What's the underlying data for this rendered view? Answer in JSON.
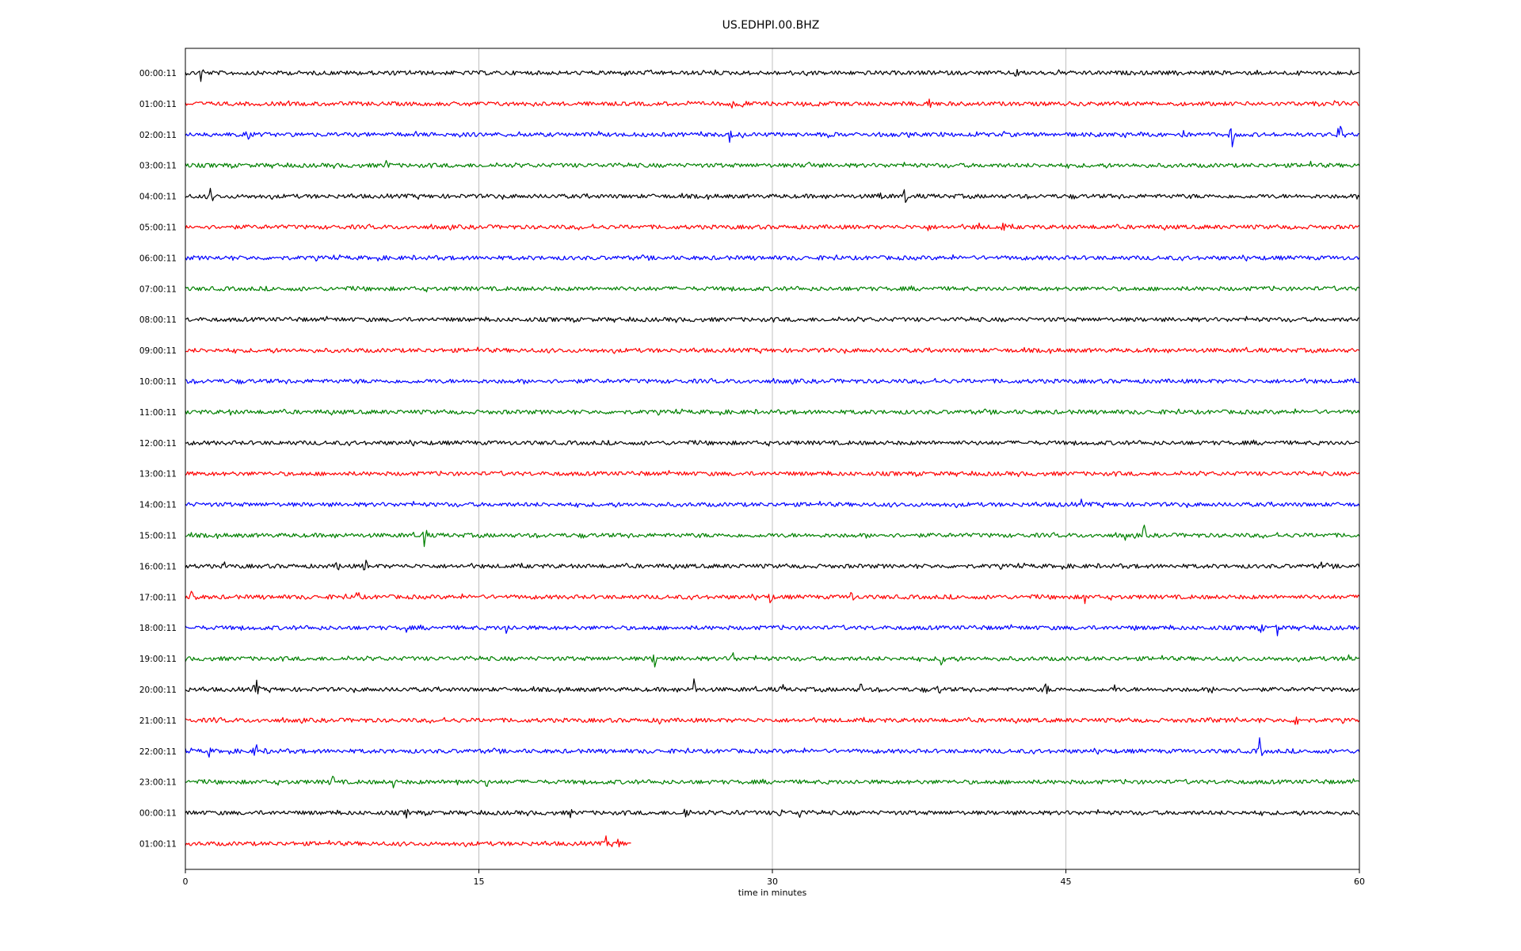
{
  "chart_data": {
    "type": "line",
    "title": "US.EDHPI.00.BHZ",
    "xlabel": "time in minutes",
    "ylabel": "",
    "xlim": [
      0,
      60
    ],
    "xticks": [
      "0",
      "15",
      "30",
      "45",
      "60"
    ],
    "grid": "vertical",
    "trace_colors": [
      "#000000",
      "#ff0000",
      "#0000ff",
      "#008000"
    ],
    "rows": [
      {
        "label": "00:00:11",
        "color": "#000000",
        "end_minute": 60,
        "events": [
          {
            "t": 0.8,
            "a": 16
          },
          {
            "t": 42.5,
            "a": 12
          }
        ]
      },
      {
        "label": "01:00:11",
        "color": "#ff0000",
        "end_minute": 60,
        "events": [
          {
            "t": 28.0,
            "a": 12
          },
          {
            "t": 28.5,
            "a": 16
          },
          {
            "t": 38.0,
            "a": 14
          }
        ]
      },
      {
        "label": "02:00:11",
        "color": "#0000ff",
        "end_minute": 60,
        "events": [
          {
            "t": 1.5,
            "a": 10
          },
          {
            "t": 3.2,
            "a": 9
          },
          {
            "t": 16.5,
            "a": 7
          },
          {
            "t": 27.8,
            "a": 14
          },
          {
            "t": 51.0,
            "a": 12
          },
          {
            "t": 53.5,
            "a": 18
          },
          {
            "t": 59.0,
            "a": 20
          }
        ]
      },
      {
        "label": "03:00:11",
        "color": "#008000",
        "end_minute": 60,
        "events": [
          {
            "t": 10.3,
            "a": 12
          },
          {
            "t": 31.8,
            "a": 16
          },
          {
            "t": 57.5,
            "a": 6
          }
        ]
      },
      {
        "label": "04:00:11",
        "color": "#000000",
        "end_minute": 60,
        "events": [
          {
            "t": 1.3,
            "a": 14
          },
          {
            "t": 35.5,
            "a": 12
          },
          {
            "t": 36.8,
            "a": 15
          }
        ]
      },
      {
        "label": "05:00:11",
        "color": "#ff0000",
        "end_minute": 60,
        "events": [
          {
            "t": 38.0,
            "a": 8
          },
          {
            "t": 40.5,
            "a": 12
          },
          {
            "t": 41.8,
            "a": 10
          }
        ]
      },
      {
        "label": "06:00:11",
        "color": "#0000ff",
        "end_minute": 60,
        "events": []
      },
      {
        "label": "07:00:11",
        "color": "#008000",
        "end_minute": 60,
        "events": []
      },
      {
        "label": "08:00:11",
        "color": "#000000",
        "end_minute": 60,
        "events": []
      },
      {
        "label": "09:00:11",
        "color": "#ff0000",
        "end_minute": 60,
        "events": []
      },
      {
        "label": "10:00:11",
        "color": "#0000ff",
        "end_minute": 60,
        "events": [
          {
            "t": 57.0,
            "a": 5
          }
        ]
      },
      {
        "label": "11:00:11",
        "color": "#008000",
        "end_minute": 60,
        "events": [
          {
            "t": 2.3,
            "a": 5
          }
        ]
      },
      {
        "label": "12:00:11",
        "color": "#000000",
        "end_minute": 60,
        "events": []
      },
      {
        "label": "13:00:11",
        "color": "#ff0000",
        "end_minute": 60,
        "events": []
      },
      {
        "label": "14:00:11",
        "color": "#0000ff",
        "end_minute": 60,
        "events": [
          {
            "t": 44.7,
            "a": 10
          },
          {
            "t": 45.8,
            "a": 8
          }
        ]
      },
      {
        "label": "15:00:11",
        "color": "#008000",
        "end_minute": 60,
        "events": [
          {
            "t": 12.2,
            "a": 20
          },
          {
            "t": 48.0,
            "a": 10
          },
          {
            "t": 49.0,
            "a": 14
          }
        ]
      },
      {
        "label": "16:00:11",
        "color": "#000000",
        "end_minute": 60,
        "events": [
          {
            "t": 2.0,
            "a": 6
          },
          {
            "t": 7.8,
            "a": 10
          },
          {
            "t": 9.2,
            "a": 12
          },
          {
            "t": 58.0,
            "a": 10
          }
        ]
      },
      {
        "label": "17:00:11",
        "color": "#ff0000",
        "end_minute": 60,
        "events": [
          {
            "t": 0.4,
            "a": 20
          },
          {
            "t": 8.8,
            "a": 12
          },
          {
            "t": 29.9,
            "a": 12
          },
          {
            "t": 34.0,
            "a": 14
          },
          {
            "t": 41.5,
            "a": 9
          },
          {
            "t": 46.0,
            "a": 12
          }
        ]
      },
      {
        "label": "18:00:11",
        "color": "#0000ff",
        "end_minute": 60,
        "events": [
          {
            "t": 11.3,
            "a": 7
          },
          {
            "t": 16.4,
            "a": 12
          },
          {
            "t": 48.5,
            "a": 6
          },
          {
            "t": 55.0,
            "a": 9
          },
          {
            "t": 55.8,
            "a": 12
          }
        ]
      },
      {
        "label": "19:00:11",
        "color": "#008000",
        "end_minute": 60,
        "events": [
          {
            "t": 24.0,
            "a": 16
          },
          {
            "t": 28.0,
            "a": 14
          },
          {
            "t": 38.7,
            "a": 18
          },
          {
            "t": 59.5,
            "a": 14
          }
        ]
      },
      {
        "label": "20:00:11",
        "color": "#000000",
        "end_minute": 60,
        "events": [
          {
            "t": 3.6,
            "a": 18
          },
          {
            "t": 26.0,
            "a": 16
          },
          {
            "t": 30.5,
            "a": 10
          },
          {
            "t": 34.5,
            "a": 12
          },
          {
            "t": 38.5,
            "a": 10
          },
          {
            "t": 44.0,
            "a": 12
          },
          {
            "t": 47.5,
            "a": 8
          },
          {
            "t": 52.5,
            "a": 6
          }
        ]
      },
      {
        "label": "21:00:11",
        "color": "#ff0000",
        "end_minute": 60,
        "events": [
          {
            "t": 1.5,
            "a": 7
          },
          {
            "t": 24.2,
            "a": 8
          },
          {
            "t": 52.3,
            "a": 10
          },
          {
            "t": 53.8,
            "a": 9
          },
          {
            "t": 55.0,
            "a": 8
          },
          {
            "t": 56.8,
            "a": 14
          }
        ]
      },
      {
        "label": "22:00:11",
        "color": "#0000ff",
        "end_minute": 60,
        "events": [
          {
            "t": 1.2,
            "a": 9
          },
          {
            "t": 3.6,
            "a": 14
          },
          {
            "t": 4.3,
            "a": 10
          },
          {
            "t": 54.9,
            "a": 18
          }
        ]
      },
      {
        "label": "23:00:11",
        "color": "#008000",
        "end_minute": 60,
        "events": [
          {
            "t": 7.5,
            "a": 14
          },
          {
            "t": 10.6,
            "a": 12
          },
          {
            "t": 13.9,
            "a": 10
          },
          {
            "t": 15.4,
            "a": 8
          }
        ]
      },
      {
        "label": "00:00:11",
        "color": "#000000",
        "end_minute": 60,
        "events": [
          {
            "t": 11.3,
            "a": 8
          },
          {
            "t": 19.7,
            "a": 8
          },
          {
            "t": 25.6,
            "a": 16
          },
          {
            "t": 28.3,
            "a": 10
          },
          {
            "t": 30.4,
            "a": 10
          },
          {
            "t": 31.4,
            "a": 12
          }
        ]
      },
      {
        "label": "01:00:11",
        "color": "#ff0000",
        "end_minute": 22.8,
        "events": [
          {
            "t": 21.5,
            "a": 10
          },
          {
            "t": 22.2,
            "a": 14
          }
        ]
      }
    ]
  }
}
